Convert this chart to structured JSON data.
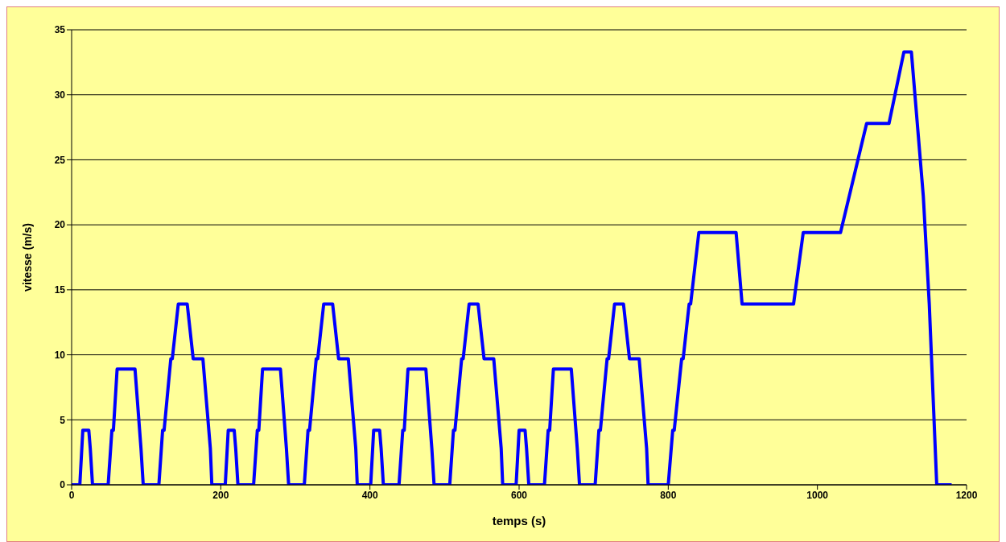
{
  "chart_data": {
    "type": "line",
    "xlabel": "temps (s)",
    "ylabel": "vitesse (m/s)",
    "x": [
      0,
      11,
      15,
      23,
      25,
      28,
      49,
      54,
      56,
      61,
      85,
      93,
      96,
      117,
      122,
      124,
      133,
      135,
      143,
      155,
      163,
      176,
      186,
      188,
      195,
      206,
      210,
      218,
      220,
      223,
      244,
      249,
      251,
      256,
      280,
      288,
      291,
      312,
      317,
      319,
      328,
      330,
      338,
      350,
      358,
      371,
      381,
      383,
      390,
      401,
      405,
      413,
      415,
      418,
      439,
      444,
      446,
      451,
      475,
      483,
      486,
      507,
      512,
      514,
      523,
      525,
      533,
      545,
      553,
      566,
      576,
      578,
      585,
      596,
      600,
      608,
      610,
      613,
      634,
      639,
      641,
      646,
      670,
      678,
      681,
      702,
      707,
      709,
      718,
      720,
      728,
      740,
      748,
      761,
      771,
      773,
      780,
      800,
      806,
      808,
      818,
      820,
      828,
      830,
      841,
      891,
      899,
      968,
      981,
      1031,
      1066,
      1096,
      1116,
      1126,
      1142,
      1150,
      1160,
      1180
    ],
    "series": [
      {
        "color": "#0000ff",
        "values": [
          0,
          0,
          4.2,
          4.2,
          2.8,
          0,
          0,
          4.2,
          4.2,
          8.9,
          8.9,
          2.8,
          0,
          0,
          4.2,
          4.2,
          9.7,
          9.7,
          13.9,
          13.9,
          9.7,
          9.7,
          2.8,
          0,
          0,
          0,
          4.2,
          4.2,
          2.8,
          0,
          0,
          4.2,
          4.2,
          8.9,
          8.9,
          2.8,
          0,
          0,
          4.2,
          4.2,
          9.7,
          9.7,
          13.9,
          13.9,
          9.7,
          9.7,
          2.8,
          0,
          0,
          0,
          4.2,
          4.2,
          2.8,
          0,
          0,
          4.2,
          4.2,
          8.9,
          8.9,
          2.8,
          0,
          0,
          4.2,
          4.2,
          9.7,
          9.7,
          13.9,
          13.9,
          9.7,
          9.7,
          2.8,
          0,
          0,
          0,
          4.2,
          4.2,
          2.8,
          0,
          0,
          4.2,
          4.2,
          8.9,
          8.9,
          2.8,
          0,
          0,
          4.2,
          4.2,
          9.7,
          9.7,
          13.9,
          13.9,
          9.7,
          9.7,
          2.8,
          0,
          0,
          0,
          4.2,
          4.2,
          9.7,
          9.7,
          13.9,
          13.9,
          19.4,
          19.4,
          13.9,
          13.9,
          19.4,
          19.4,
          27.8,
          27.8,
          33.3,
          33.3,
          22.2,
          13.9,
          0,
          0
        ]
      }
    ],
    "xlim": [
      0,
      1200
    ],
    "xticks": [
      0,
      200,
      400,
      600,
      800,
      1000,
      1200
    ],
    "ylim": [
      0,
      35
    ],
    "yticks": [
      0,
      5,
      10,
      15,
      20,
      25,
      30,
      35
    ],
    "grid": "y",
    "legend": false,
    "marker": "none",
    "line_style": "solid"
  }
}
